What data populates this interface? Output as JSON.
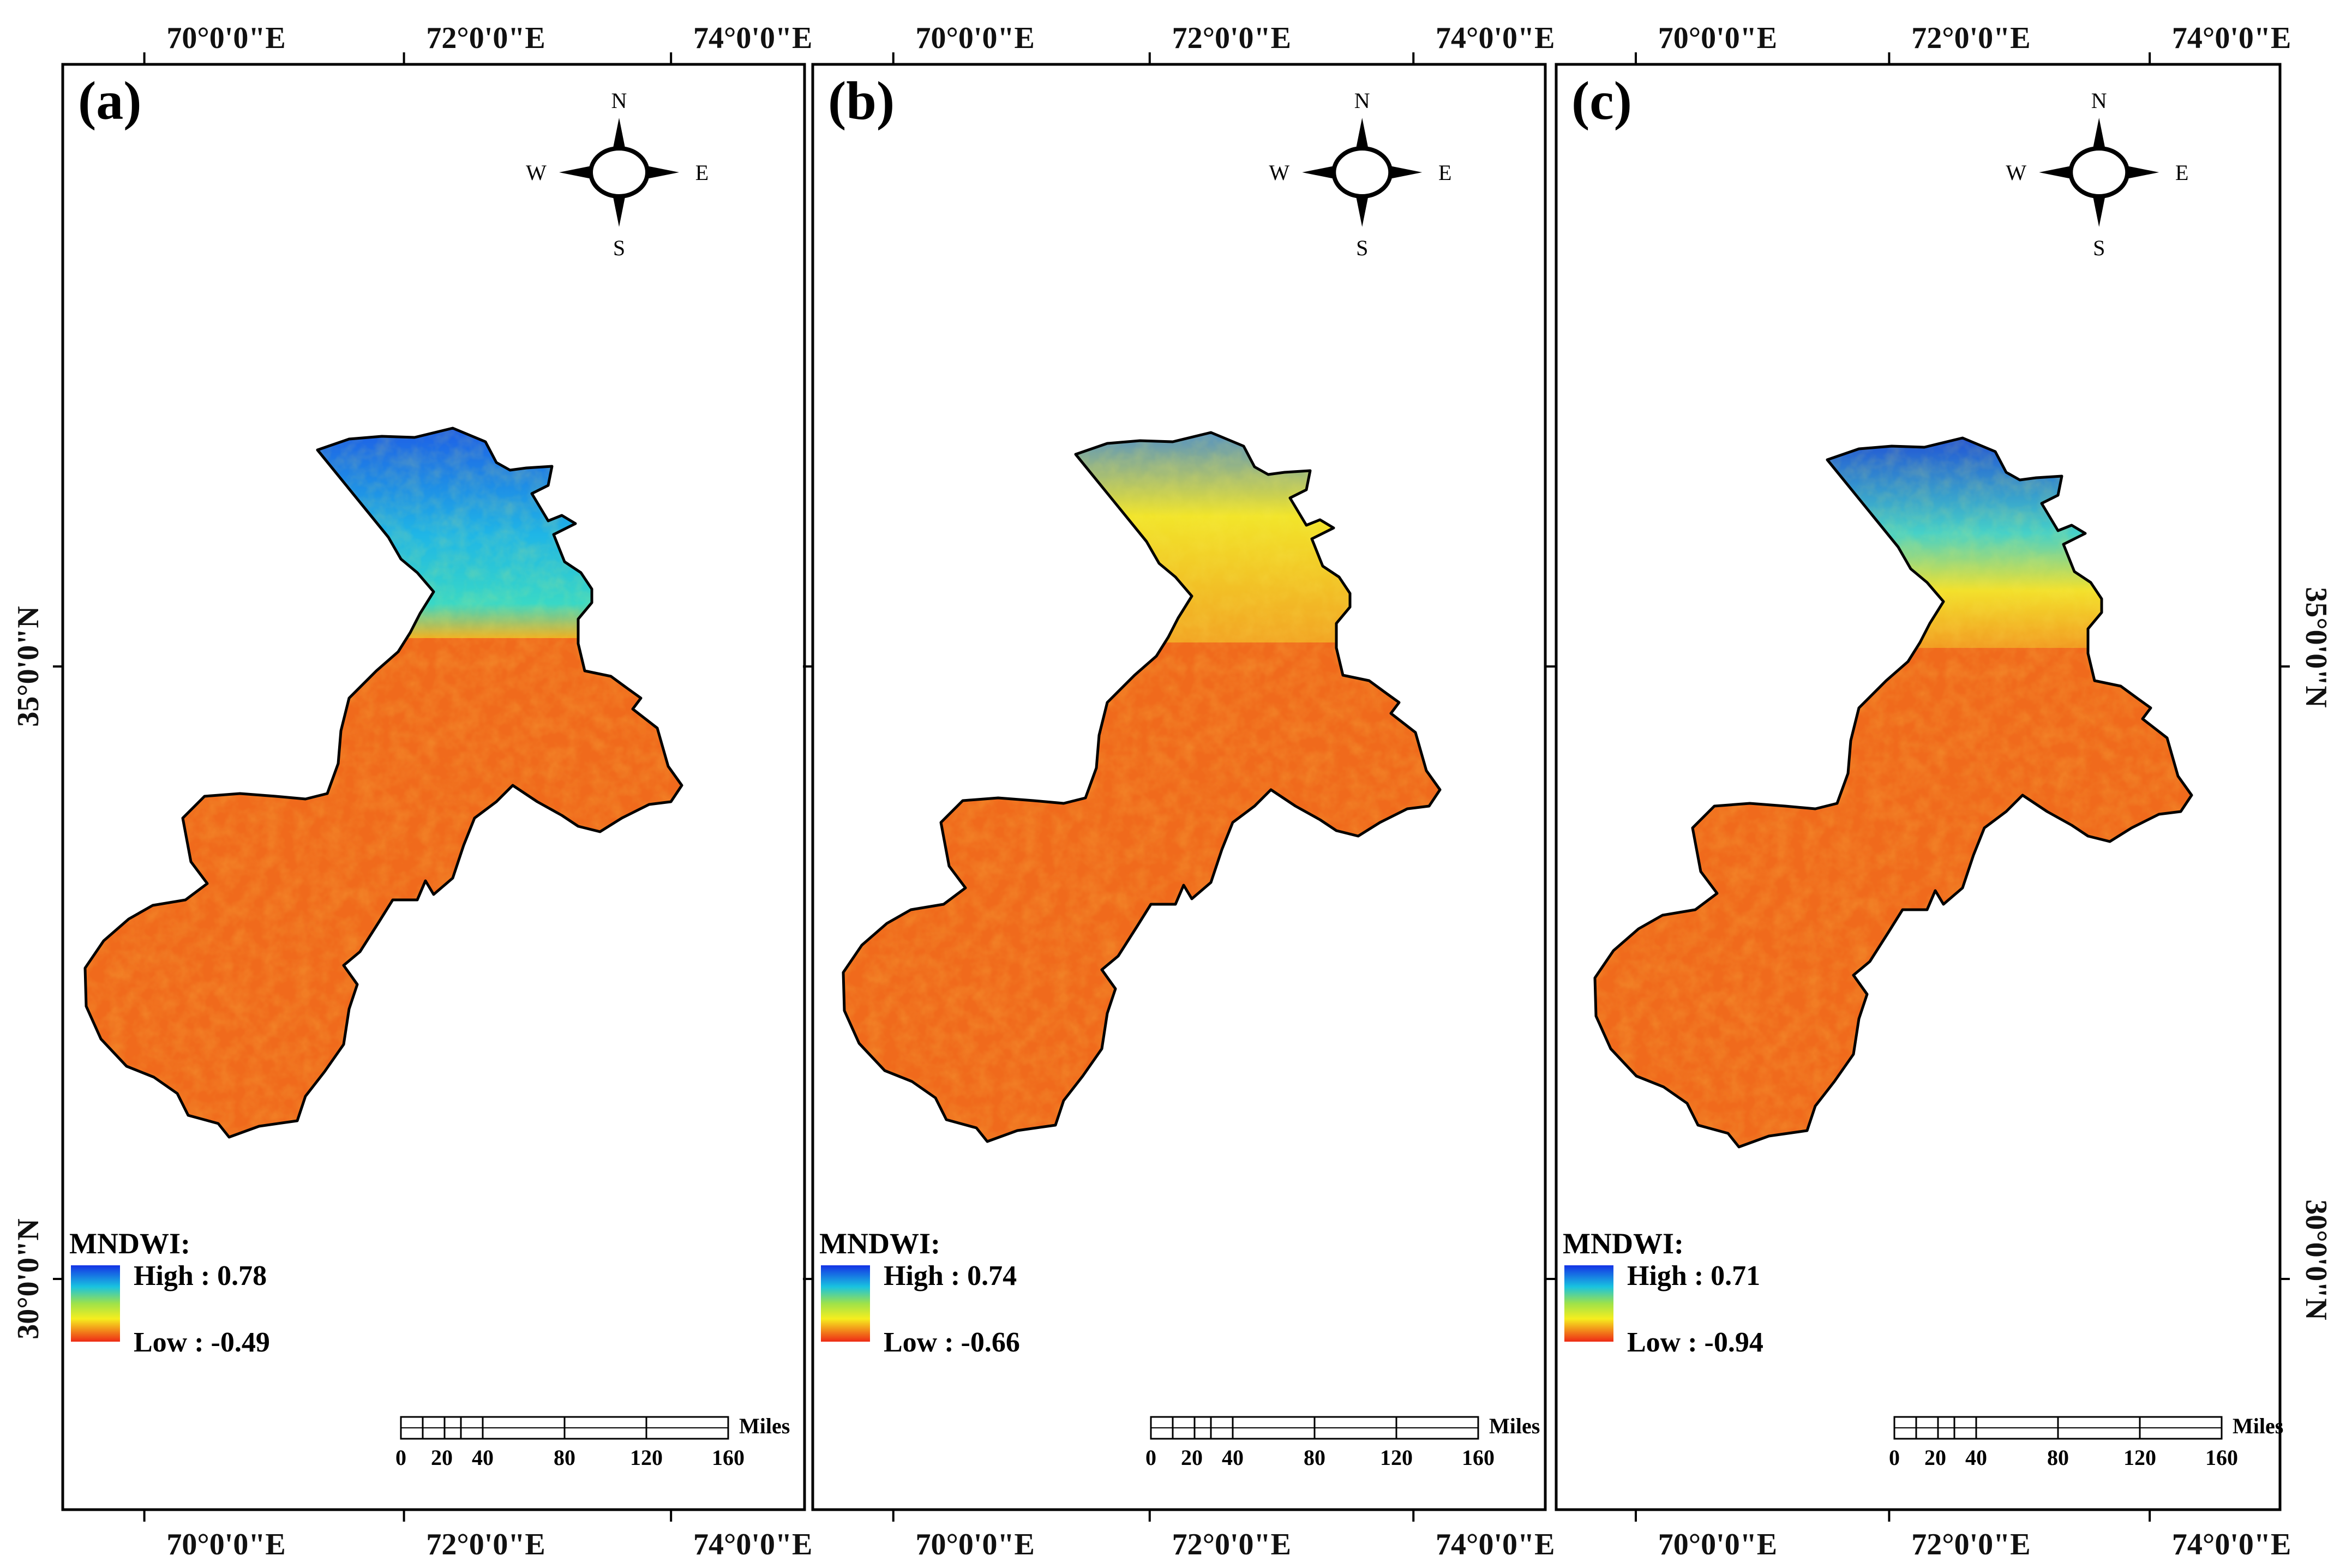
{
  "top_lon_labels": [
    "70°0'0\"E",
    "72°0'0\"E",
    "74°0'0\"E"
  ],
  "bottom_lon_labels": [
    "70°0'0\"E",
    "72°0'0\"E",
    "74°0'0\"E"
  ],
  "lat_labels": [
    "35°0'0\"N",
    "30°0'0\"N"
  ],
  "compass": {
    "north": "N",
    "south": "S",
    "east": "E",
    "west": "W"
  },
  "legend_title": "MNDWI:",
  "scale_bar": {
    "ticks": [
      "0",
      "20",
      "40",
      "80",
      "120",
      "160"
    ],
    "unit": "Miles"
  },
  "colors": {
    "high": "#1b3fe0",
    "mid": "#f3ef2a",
    "low": "#f0361c",
    "body": "#f06a1c"
  },
  "panels": [
    {
      "label": "(a)",
      "high_label": "High : 0.78",
      "low_label": "Low : -0.49",
      "high": 0.78,
      "low": -0.49
    },
    {
      "label": "(b)",
      "high_label": "High : 0.74",
      "low_label": "Low : -0.66",
      "high": 0.74,
      "low": -0.66
    },
    {
      "label": "(c)",
      "high_label": "High : 0.71",
      "low_label": "Low : -0.94",
      "high": 0.71,
      "low": -0.94
    }
  ]
}
